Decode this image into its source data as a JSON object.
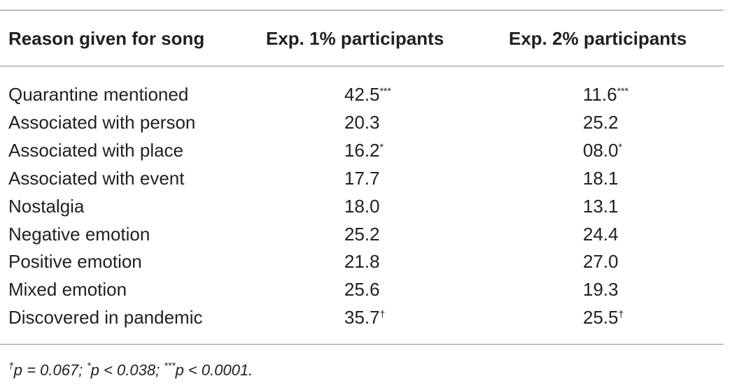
{
  "table": {
    "header": [
      "Reason given for song",
      "Exp. 1% participants",
      "Exp. 2% participants"
    ],
    "rows": [
      [
        {
          "text": "Quarantine mentioned"
        },
        {
          "text": "42.5",
          "sup": "***"
        },
        {
          "text": "11.6",
          "sup": "***"
        }
      ],
      [
        {
          "text": "Associated with person"
        },
        {
          "text": "20.3"
        },
        {
          "text": "25.2"
        }
      ],
      [
        {
          "text": "Associated with place"
        },
        {
          "text": "16.2",
          "sup": "*"
        },
        {
          "text": "08.0",
          "sup": "*"
        }
      ],
      [
        {
          "text": "Associated with event"
        },
        {
          "text": "17.7"
        },
        {
          "text": "18.1"
        }
      ],
      [
        {
          "text": "Nostalgia"
        },
        {
          "text": "18.0"
        },
        {
          "text": "13.1"
        }
      ],
      [
        {
          "text": "Negative emotion"
        },
        {
          "text": "25.2"
        },
        {
          "text": "24.4"
        }
      ],
      [
        {
          "text": "Positive emotion"
        },
        {
          "text": "21.8"
        },
        {
          "text": "27.0"
        }
      ],
      [
        {
          "text": "Mixed emotion"
        },
        {
          "text": "25.6"
        },
        {
          "text": "19.3"
        }
      ],
      [
        {
          "text": "Discovered in pandemic"
        },
        {
          "text": "35.7",
          "sup": "†"
        },
        {
          "text": "25.5",
          "sup": "†"
        }
      ]
    ],
    "footnote": [
      {
        "sup": "†",
        "text": "p = 0.067;"
      },
      {
        "sup": "*",
        "text": "p < 0.038;"
      },
      {
        "sup": "***",
        "text": "p < 0.0001."
      }
    ]
  }
}
